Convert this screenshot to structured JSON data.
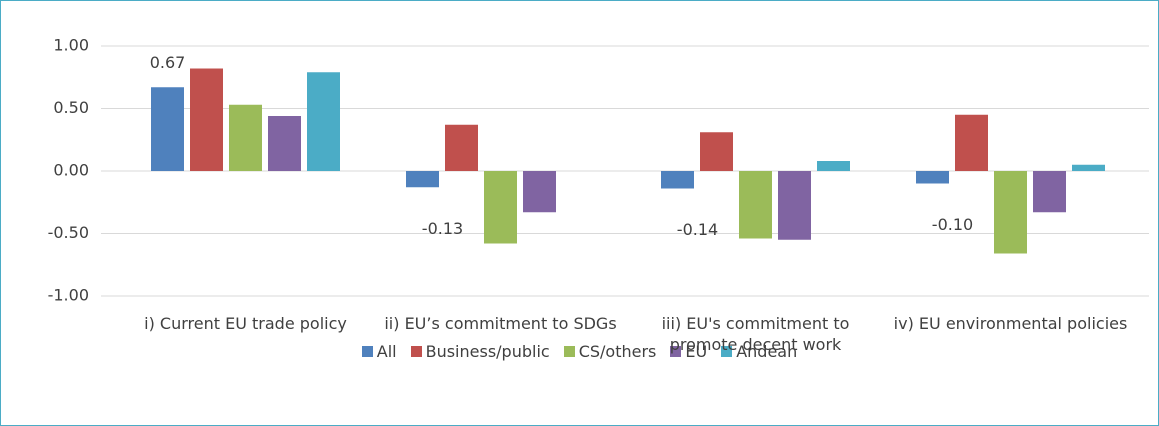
{
  "chart_data": {
    "type": "bar",
    "categories": [
      "i) Current EU trade policy",
      "ii) EU’s commitment to SDGs",
      "iii) EU's commitment to promote decent work",
      "iv) EU environmental policies"
    ],
    "series": [
      {
        "name": "All",
        "color": "#4f81bd",
        "values": [
          0.67,
          -0.13,
          -0.14,
          -0.1
        ],
        "value_labels": [
          "0.67",
          "-0.13",
          "-0.14",
          "-0.10"
        ]
      },
      {
        "name": "Business/public",
        "color": "#c0504d",
        "values": [
          0.82,
          0.37,
          0.31,
          0.45
        ]
      },
      {
        "name": "CS/others",
        "color": "#9bbb59",
        "values": [
          0.53,
          -0.58,
          -0.54,
          -0.66
        ]
      },
      {
        "name": "EU",
        "color": "#8064a2",
        "values": [
          0.44,
          -0.33,
          -0.55,
          -0.33
        ]
      },
      {
        "name": "Andean",
        "color": "#4bacc6",
        "values": [
          0.79,
          null,
          0.08,
          0.05
        ]
      }
    ],
    "ylim": [
      -1,
      1
    ],
    "yticks": [
      {
        "value": -1,
        "label": "-1.00"
      },
      {
        "value": -0.5,
        "label": "-0.50"
      },
      {
        "value": 0,
        "label": "0.00"
      },
      {
        "value": 0.5,
        "label": "0.50"
      },
      {
        "value": 1,
        "label": "1.00"
      }
    ],
    "grid": true,
    "legend": "bottom"
  }
}
